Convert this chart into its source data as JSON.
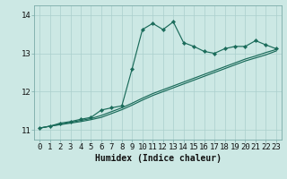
{
  "xlabel": "Humidex (Indice chaleur)",
  "background_color": "#cce8e4",
  "grid_color": "#aacfcc",
  "line_color": "#1a6b5a",
  "xlim": [
    -0.5,
    23.5
  ],
  "ylim": [
    10.75,
    14.25
  ],
  "yticks": [
    11,
    12,
    13,
    14
  ],
  "xticks": [
    0,
    1,
    2,
    3,
    4,
    5,
    6,
    7,
    8,
    9,
    10,
    11,
    12,
    13,
    14,
    15,
    16,
    17,
    18,
    19,
    20,
    21,
    22,
    23
  ],
  "series1_x": [
    0,
    1,
    2,
    3,
    4,
    5,
    6,
    7,
    8,
    9,
    10,
    11,
    12,
    13,
    14,
    15,
    16,
    17,
    18,
    19,
    20,
    21,
    22,
    23
  ],
  "series1_y": [
    11.05,
    11.1,
    11.18,
    11.22,
    11.28,
    11.33,
    11.52,
    11.58,
    11.63,
    12.6,
    13.62,
    13.78,
    13.62,
    13.82,
    13.28,
    13.18,
    13.05,
    13.0,
    13.12,
    13.18,
    13.18,
    13.33,
    13.22,
    13.12
  ],
  "series2_x": [
    0,
    1,
    2,
    3,
    4,
    5,
    6,
    7,
    8,
    9,
    10,
    11,
    12,
    13,
    14,
    15,
    16,
    17,
    18,
    19,
    20,
    21,
    22,
    23
  ],
  "series2_y": [
    11.05,
    11.1,
    11.15,
    11.2,
    11.25,
    11.3,
    11.38,
    11.48,
    11.58,
    11.7,
    11.83,
    11.95,
    12.05,
    12.15,
    12.25,
    12.35,
    12.45,
    12.55,
    12.65,
    12.75,
    12.85,
    12.93,
    13.02,
    13.1
  ],
  "series3_x": [
    0,
    1,
    2,
    3,
    4,
    5,
    6,
    7,
    8,
    9,
    10,
    11,
    12,
    13,
    14,
    15,
    16,
    17,
    18,
    19,
    20,
    21,
    22,
    23
  ],
  "series3_y": [
    11.05,
    11.1,
    11.14,
    11.18,
    11.22,
    11.27,
    11.33,
    11.43,
    11.53,
    11.65,
    11.78,
    11.9,
    12.0,
    12.1,
    12.2,
    12.3,
    12.4,
    12.5,
    12.6,
    12.7,
    12.8,
    12.88,
    12.96,
    13.06
  ],
  "fontsize_xlabel": 7,
  "tick_fontsize": 6.5,
  "marker_size": 2.2,
  "linewidth": 0.85
}
